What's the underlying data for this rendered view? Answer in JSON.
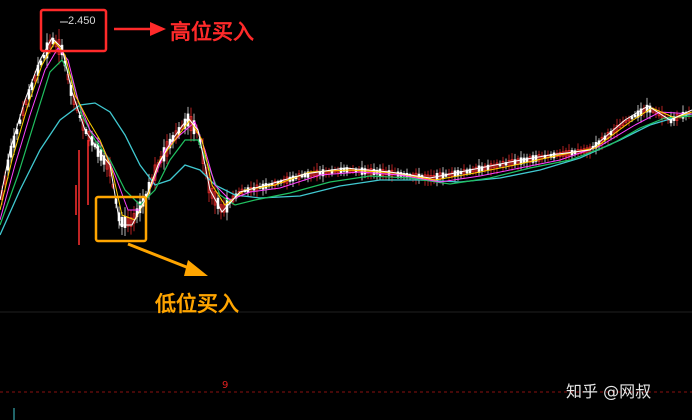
{
  "annotations": {
    "peak_price": "2.450",
    "high_buy_label": "高位买入",
    "low_buy_label": "低位买入",
    "axis_mark": "9"
  },
  "watermark": "知乎 @网叔",
  "colors": {
    "background": "#000000",
    "high_box": "#ff2a2a",
    "low_box": "#ffa500",
    "rise_candle": "#ff3030",
    "fall_candle": "#ffffff",
    "ma5": "#ffffff",
    "ma10": "#ffd000",
    "ma20": "#ff40ff",
    "ma60": "#20c060",
    "ma120": "#40c8d0"
  },
  "chart_data": {
    "type": "candlestick",
    "title": "",
    "xlabel": "",
    "ylabel": "",
    "peak_value": 2.45,
    "series": []
  }
}
